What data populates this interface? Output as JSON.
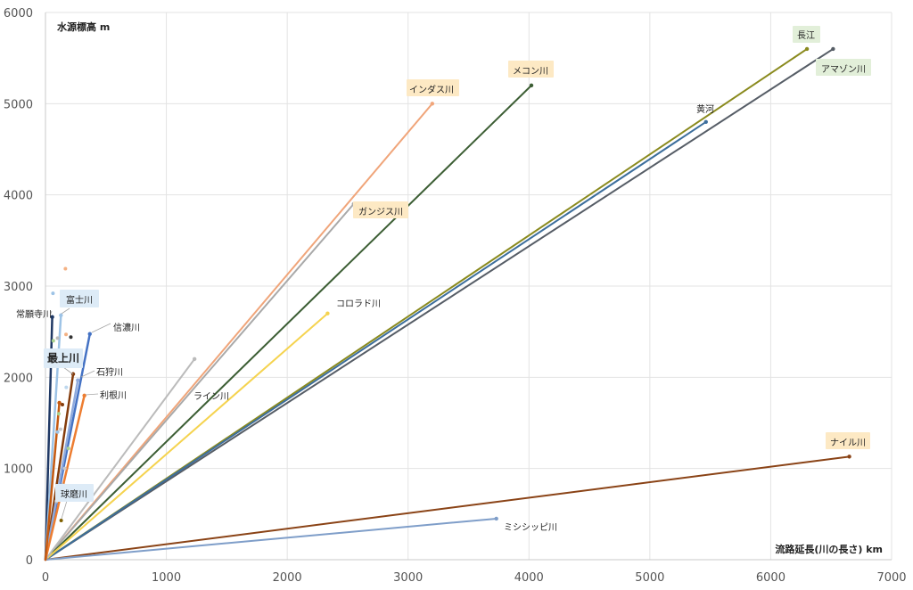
{
  "chart_data": {
    "type": "line",
    "ylabel": "水源標高 m",
    "xlabel": "流路延長(川の長さ) km",
    "xlim": [
      0,
      7000
    ],
    "ylim": [
      0,
      6000
    ],
    "xticks": [
      0,
      1000,
      2000,
      3000,
      4000,
      5000,
      6000,
      7000
    ],
    "yticks": [
      0,
      1000,
      2000,
      3000,
      4000,
      5000,
      6000
    ],
    "grid": true,
    "series": [
      {
        "name": "インダス川",
        "x": [
          0,
          3200
        ],
        "y": [
          0,
          5000
        ],
        "color": "#f0a57a",
        "label_box": "#fde9c4",
        "big": false
      },
      {
        "name": "ガンジス川",
        "x": [
          0,
          2550
        ],
        "y": [
          0,
          3900
        ],
        "color": "#a9a9a9",
        "label_box": "#fde9c4",
        "big": false
      },
      {
        "name": "メコン川",
        "x": [
          0,
          4020
        ],
        "y": [
          0,
          5200
        ],
        "color": "#3c5e34",
        "label_box": "#fde9c4",
        "big": false
      },
      {
        "name": "長江",
        "x": [
          0,
          6300
        ],
        "y": [
          0,
          5600
        ],
        "color": "#8a8a1e",
        "label_box": "#e2efd9",
        "big": false
      },
      {
        "name": "アマゾン川",
        "x": [
          0,
          6516
        ],
        "y": [
          0,
          5600
        ],
        "color": "#565d66",
        "label_box": "#e2efd9",
        "big": false
      },
      {
        "name": "黄河",
        "x": [
          0,
          5464
        ],
        "y": [
          0,
          4800
        ],
        "color": "#3c6e9c",
        "label_box": "",
        "big": false
      },
      {
        "name": "コロラド川",
        "x": [
          0,
          2334
        ],
        "y": [
          0,
          2700
        ],
        "color": "#f5d34f",
        "label_box": "",
        "big": false
      },
      {
        "name": "ライン川",
        "x": [
          0,
          1233
        ],
        "y": [
          0,
          2200
        ],
        "color": "#bbbbbb",
        "label_box": "",
        "big": false
      },
      {
        "name": "ナイル川",
        "x": [
          0,
          6650
        ],
        "y": [
          0,
          1130
        ],
        "color": "#8a4316",
        "label_box": "#fde9c4",
        "big": false
      },
      {
        "name": "ミシシッピ川",
        "x": [
          0,
          3730
        ],
        "y": [
          0,
          450
        ],
        "color": "#7f9ec9",
        "label_box": "",
        "big": false
      },
      {
        "name": "常願寺川",
        "x": [
          0,
          56
        ],
        "y": [
          0,
          2661
        ],
        "color": "#1f3864",
        "label_box": "",
        "big": false
      },
      {
        "name": "富士川",
        "x": [
          0,
          128
        ],
        "y": [
          0,
          2680
        ],
        "color": "#9dc3e6",
        "label_box": "#ddebf7",
        "big": false
      },
      {
        "name": "信濃川",
        "x": [
          0,
          367
        ],
        "y": [
          0,
          2475
        ],
        "color": "#4472c4",
        "label_box": "",
        "big": false
      },
      {
        "name": "最上川",
        "x": [
          0,
          229
        ],
        "y": [
          0,
          2035
        ],
        "color": "#843c0c",
        "label_box": "#ddebf7",
        "big": true
      },
      {
        "name": "石狩川",
        "x": [
          0,
          268
        ],
        "y": [
          0,
          1967
        ],
        "color": "#8faadc",
        "label_box": "",
        "big": false
      },
      {
        "name": "利根川",
        "x": [
          0,
          322
        ],
        "y": [
          0,
          1800
        ],
        "color": "#ed7d31",
        "label_box": "",
        "big": false
      },
      {
        "name": "球磨川",
        "x": [
          0,
          115
        ],
        "y": [
          0,
          1720
        ],
        "color": "#c55a11",
        "label_box": "#ddebf7",
        "big": false
      }
    ]
  }
}
